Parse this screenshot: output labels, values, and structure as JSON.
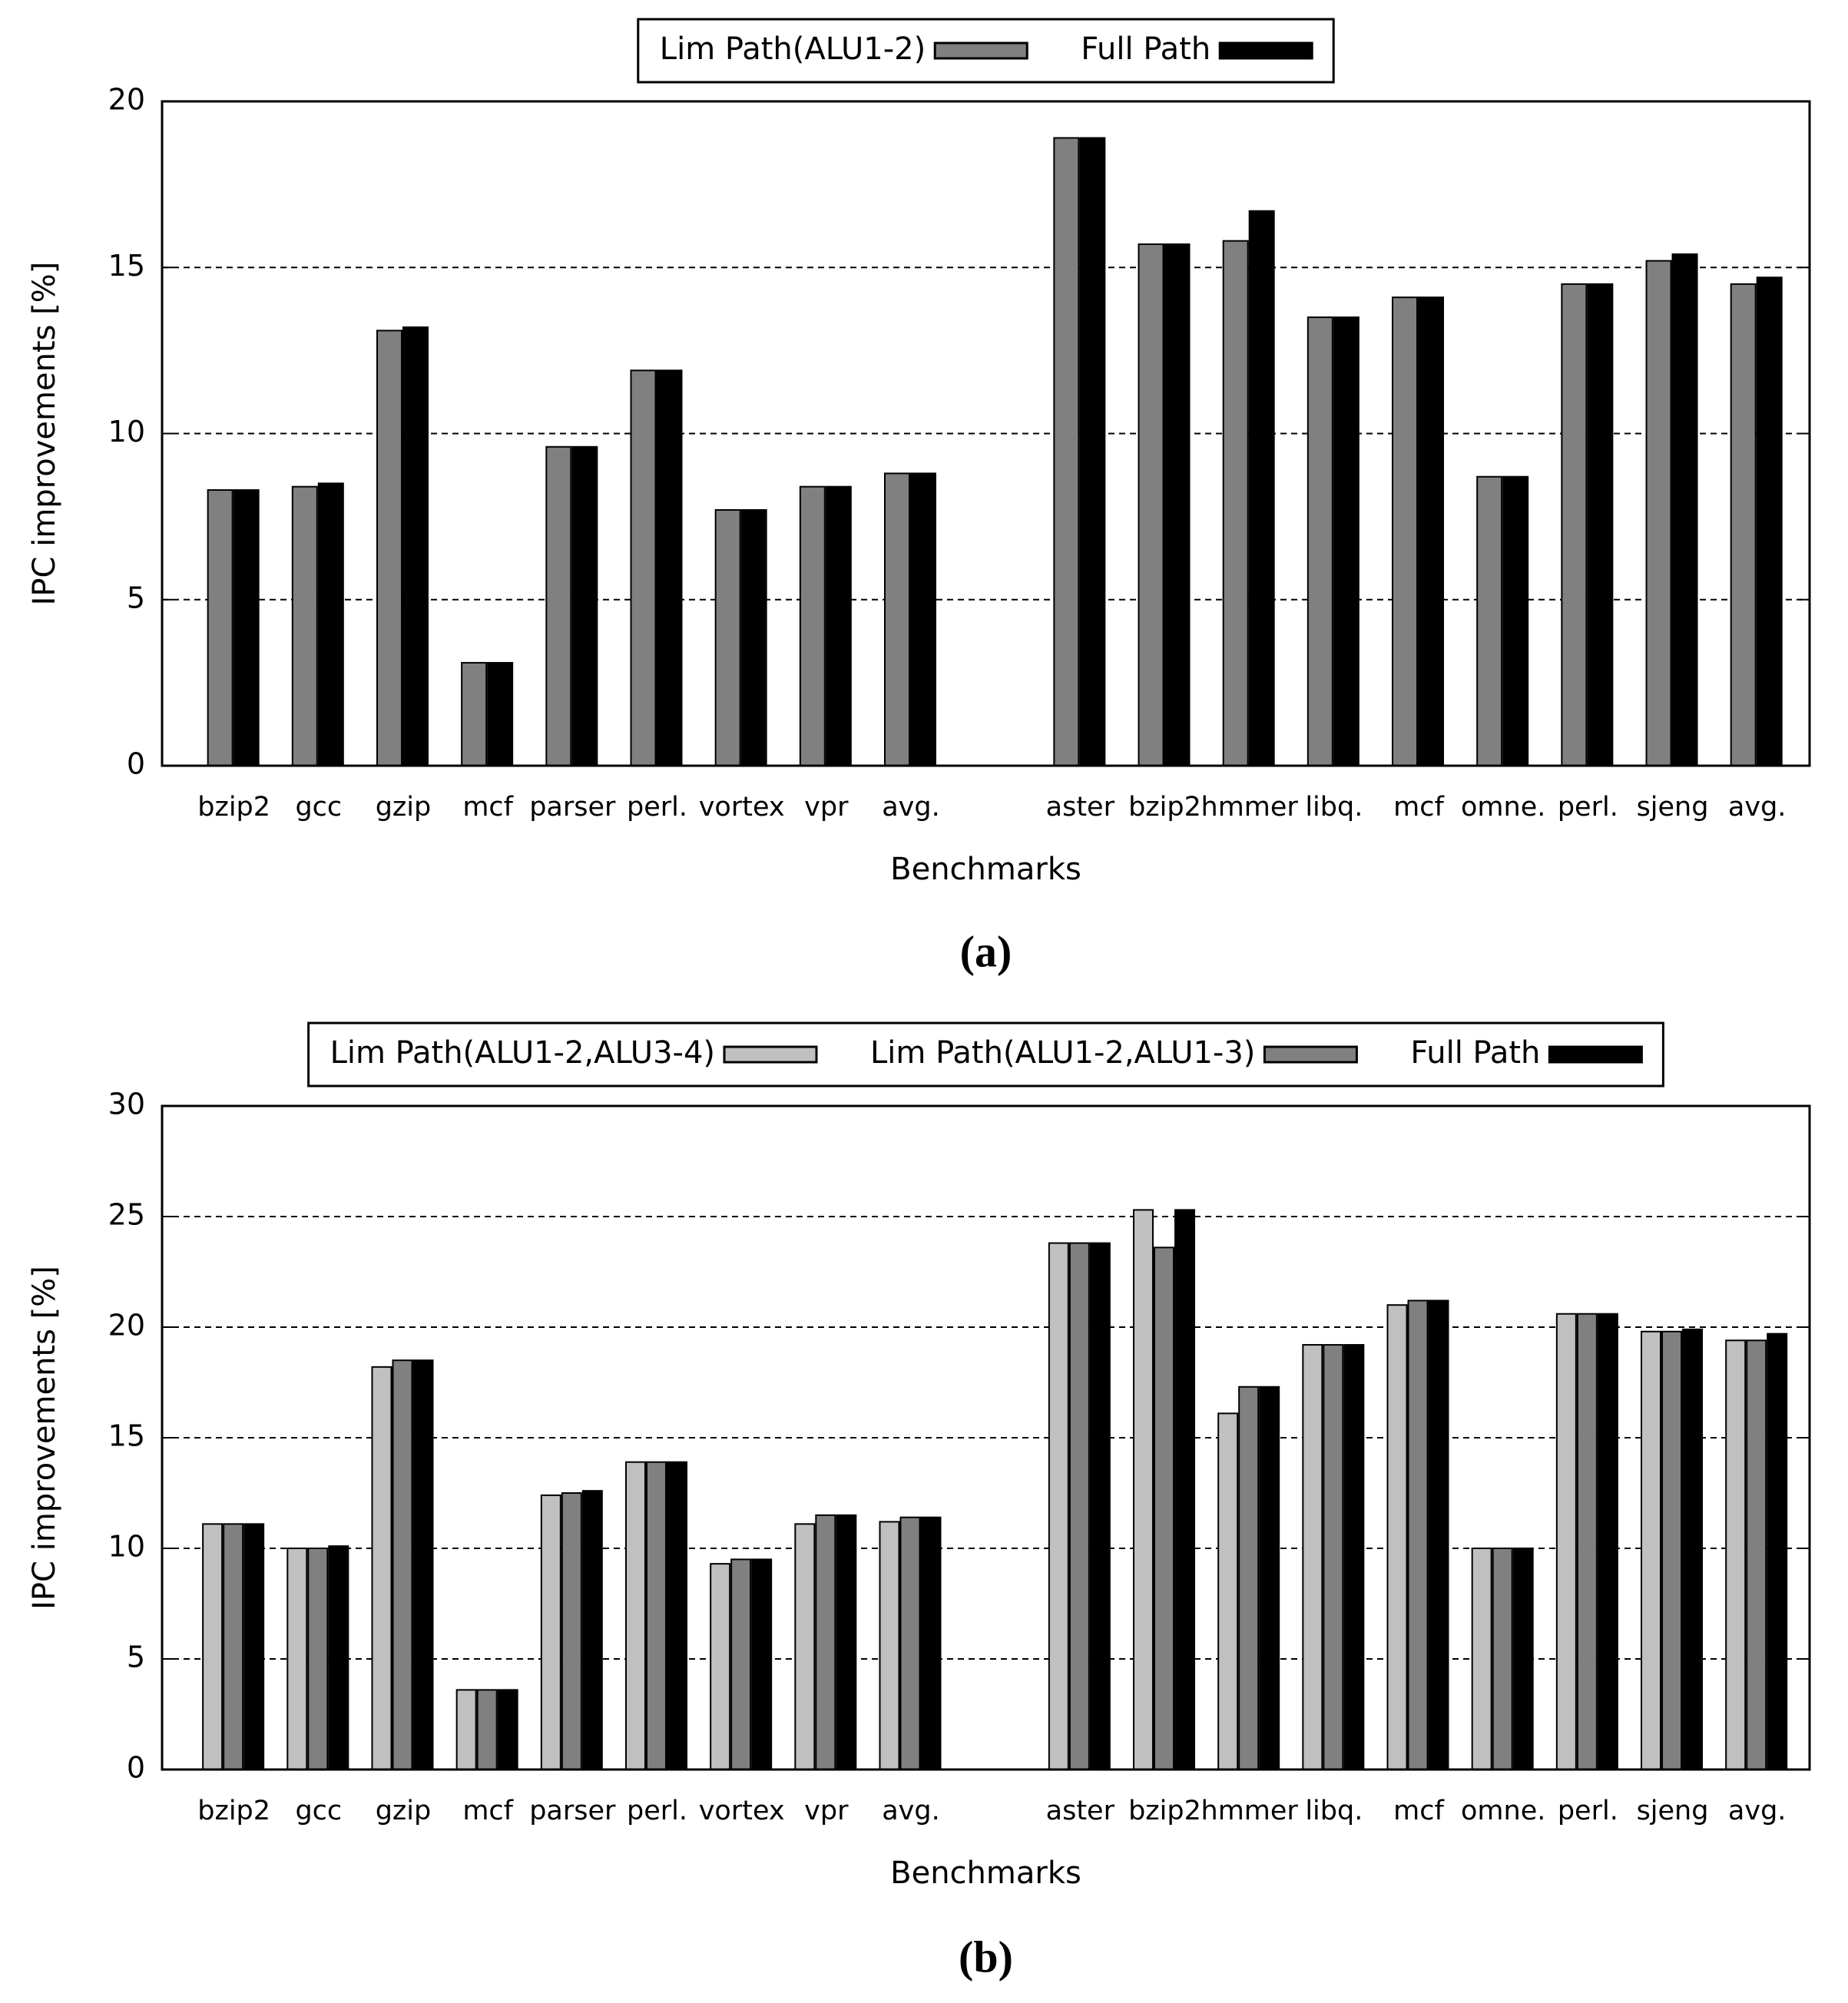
{
  "chart_data": [
    {
      "type": "bar",
      "caption": "(a)",
      "x_label": "Benchmarks",
      "y_label": "IPC improvements [%]",
      "categories": [
        "bzip2",
        "gcc",
        "gzip",
        "mcf",
        "parser",
        "perl.",
        "vortex",
        "vpr",
        "avg.",
        null,
        "aster",
        "bzip2",
        "hmmer",
        "libq.",
        "mcf",
        "omne.",
        "perl.",
        "sjeng",
        "avg."
      ],
      "series": [
        {
          "name": "Lim Path(ALU1-2)",
          "color": "#808080",
          "values": [
            8.3,
            8.4,
            13.1,
            3.1,
            9.6,
            11.9,
            7.7,
            8.4,
            8.8,
            null,
            18.9,
            15.7,
            15.8,
            13.5,
            14.1,
            8.7,
            14.5,
            15.2,
            14.5
          ]
        },
        {
          "name": "Full Path",
          "color": "#000000",
          "values": [
            8.3,
            8.5,
            13.2,
            3.1,
            9.6,
            11.9,
            7.7,
            8.4,
            8.8,
            null,
            18.9,
            15.7,
            16.7,
            13.5,
            14.1,
            8.7,
            14.5,
            15.4,
            14.7
          ]
        }
      ],
      "ylim": [
        0,
        20
      ],
      "yticks": [
        0,
        5,
        10,
        15,
        20
      ],
      "grid": true,
      "legend": "top"
    },
    {
      "type": "bar",
      "caption": "(b)",
      "x_label": "Benchmarks",
      "y_label": "IPC improvements [%]",
      "categories": [
        "bzip2",
        "gcc",
        "gzip",
        "mcf",
        "parser",
        "perl.",
        "vortex",
        "vpr",
        "avg.",
        null,
        "aster",
        "bzip2",
        "hmmer",
        "libq.",
        "mcf",
        "omne.",
        "perl.",
        "sjeng",
        "avg."
      ],
      "series": [
        {
          "name": "Lim Path(ALU1-2,ALU3-4)",
          "color": "#c0c0c0",
          "values": [
            11.1,
            10.0,
            18.2,
            3.6,
            12.4,
            13.9,
            9.3,
            11.1,
            11.2,
            null,
            23.8,
            25.3,
            16.1,
            19.2,
            21.0,
            10.0,
            20.6,
            19.8,
            19.4
          ]
        },
        {
          "name": "Lim Path(ALU1-2,ALU1-3)",
          "color": "#808080",
          "values": [
            11.1,
            10.0,
            18.5,
            3.6,
            12.5,
            13.9,
            9.5,
            11.5,
            11.4,
            null,
            23.8,
            23.6,
            17.3,
            19.2,
            21.2,
            10.0,
            20.6,
            19.8,
            19.4
          ]
        },
        {
          "name": "Full Path",
          "color": "#000000",
          "values": [
            11.1,
            10.1,
            18.5,
            3.6,
            12.6,
            13.9,
            9.5,
            11.5,
            11.4,
            null,
            23.8,
            25.3,
            17.3,
            19.2,
            21.2,
            10.0,
            20.6,
            19.9,
            19.7
          ]
        }
      ],
      "ylim": [
        0,
        30
      ],
      "yticks": [
        0,
        5,
        10,
        15,
        20,
        25,
        30
      ],
      "grid": true,
      "legend": "top"
    }
  ]
}
